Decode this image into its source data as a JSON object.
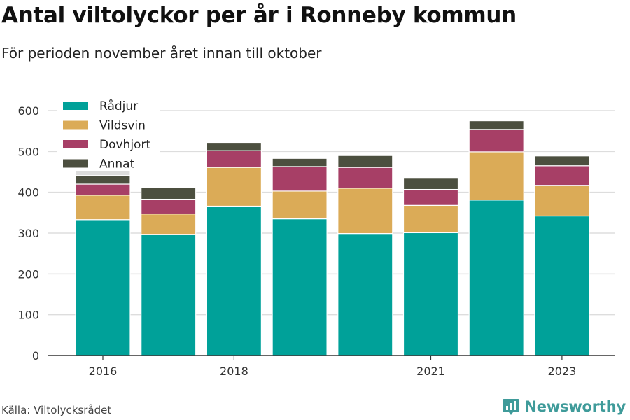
{
  "title": "Antal viltolyckor per år i Ronneby kommun",
  "subtitle": "För perioden november året innan till oktober",
  "source": "Källa: Viltolycksrådet",
  "brand": "Newsworthy",
  "colors": {
    "radjur": "#00a199",
    "vildsvin": "#dbab57",
    "dovhjort": "#a73f66",
    "annat": "#4c4f3f",
    "partial": "#dcdcdc",
    "grid": "#dddddd",
    "axis": "#333333",
    "brand": "#3f9b9a"
  },
  "chart_data": {
    "type": "bar",
    "stacked": true,
    "categories": [
      "2016",
      "2017",
      "2018",
      "2019",
      "2020",
      "2021",
      "2022",
      "2023"
    ],
    "tick_labels": [
      "2016",
      "",
      "2018",
      "",
      "",
      "2021",
      "",
      "2023"
    ],
    "series": [
      {
        "name": "Rådjur",
        "color_key": "radjur",
        "values": [
          333,
          297,
          366,
          335,
          299,
          301,
          381,
          342
        ]
      },
      {
        "name": "Vildsvin",
        "color_key": "vildsvin",
        "values": [
          60,
          50,
          95,
          68,
          111,
          67,
          118,
          75
        ]
      },
      {
        "name": "Dovhjort",
        "color_key": "dovhjort",
        "values": [
          27,
          36,
          41,
          60,
          51,
          39,
          55,
          48
        ]
      },
      {
        "name": "Annat",
        "color_key": "annat",
        "values": [
          21,
          28,
          20,
          20,
          29,
          29,
          21,
          24
        ]
      }
    ],
    "extra_segment": {
      "category": "2016",
      "value": 18,
      "color_key": "partial"
    },
    "ylim": [
      0,
      600
    ],
    "yticks": [
      0,
      100,
      200,
      300,
      400,
      500,
      600
    ],
    "grid": true,
    "legend_position": "top-left",
    "xlabel": "",
    "ylabel": ""
  }
}
